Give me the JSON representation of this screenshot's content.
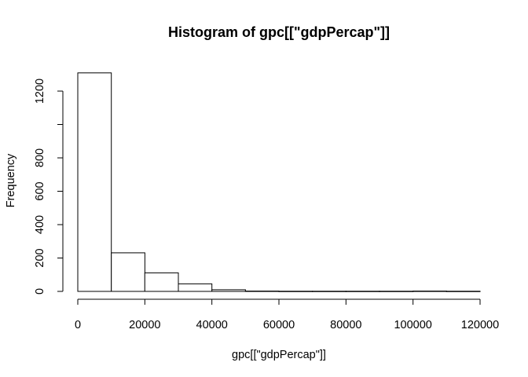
{
  "chart_data": {
    "type": "bar",
    "title": "Histogram of gpc[[\"gdpPercap\"]]",
    "xlabel": "gpc[[\"gdpPercap\"]]",
    "ylabel": "Frequency",
    "bin_edges": [
      0,
      10000,
      20000,
      30000,
      40000,
      50000,
      60000,
      70000,
      80000,
      90000,
      100000,
      110000,
      120000
    ],
    "values": [
      1309,
      231,
      111,
      45,
      10,
      2,
      1,
      1,
      1,
      1,
      2,
      1
    ],
    "xlim": [
      0,
      120000
    ],
    "ylim": [
      0,
      1300
    ],
    "x_ticks": [
      0,
      20000,
      40000,
      60000,
      80000,
      100000,
      120000
    ],
    "x_tick_labels": [
      "0",
      "20000",
      "40000",
      "60000",
      "80000",
      "100000",
      "120000"
    ],
    "y_ticks": [
      0,
      200,
      400,
      600,
      800,
      1000,
      1200
    ],
    "y_tick_labels": [
      "0",
      "200",
      "400",
      "600",
      "800",
      "",
      "1200"
    ],
    "grid": false,
    "legend": "none"
  }
}
